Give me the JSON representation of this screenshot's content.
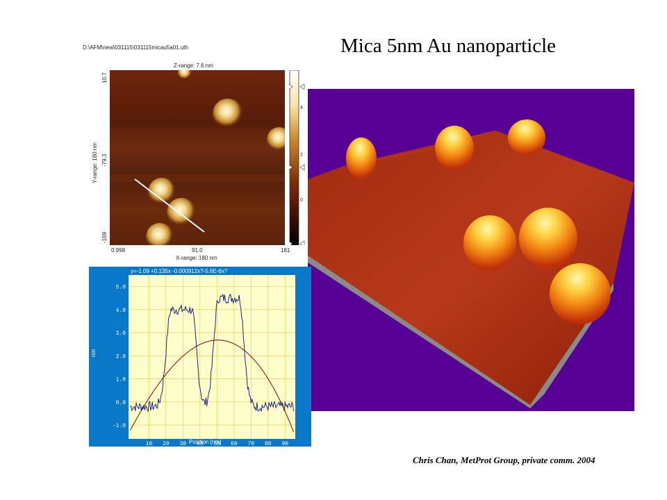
{
  "title": "Mica 5nm Au nanoparticle",
  "credit": "Chris Chan, MetProt Group, private comm. 2004",
  "afm_image": {
    "file_path": "D:\\AFM\\new\\031115\\031115micau5a01.uth",
    "z_range": "Z-range: 7.6 nm",
    "y_range": "Y-range: 180 nm",
    "x_range": "X-range: 180 nm",
    "y_ticks": [
      "10.7",
      "-79.3",
      "-169"
    ],
    "x_ticks": [
      "0.998",
      "91.0",
      "181"
    ],
    "colorbar_ticks": [
      "4",
      "2",
      "0"
    ]
  },
  "profile_plot": {
    "equation": "y=-1.09 +0.135x -0.000912x?-5.6E-6x?",
    "ylabel": "nm",
    "xlabel": "Position [nm]",
    "y_ticks": [
      "5.0",
      "4.0",
      "3.0",
      "2.0",
      "1.0",
      "0.0",
      "-1.0"
    ],
    "x_ticks": [
      "10",
      "20",
      "30",
      "40",
      "50",
      "60",
      "70",
      "80",
      "90"
    ]
  },
  "colors": {
    "profile_background": "#0a78c8",
    "plot_area": "#ffffcc",
    "grid": "#f0c040",
    "surface_background": "#560096",
    "profile_line": "#1a237e",
    "fit_line": "#8b1a1a"
  }
}
